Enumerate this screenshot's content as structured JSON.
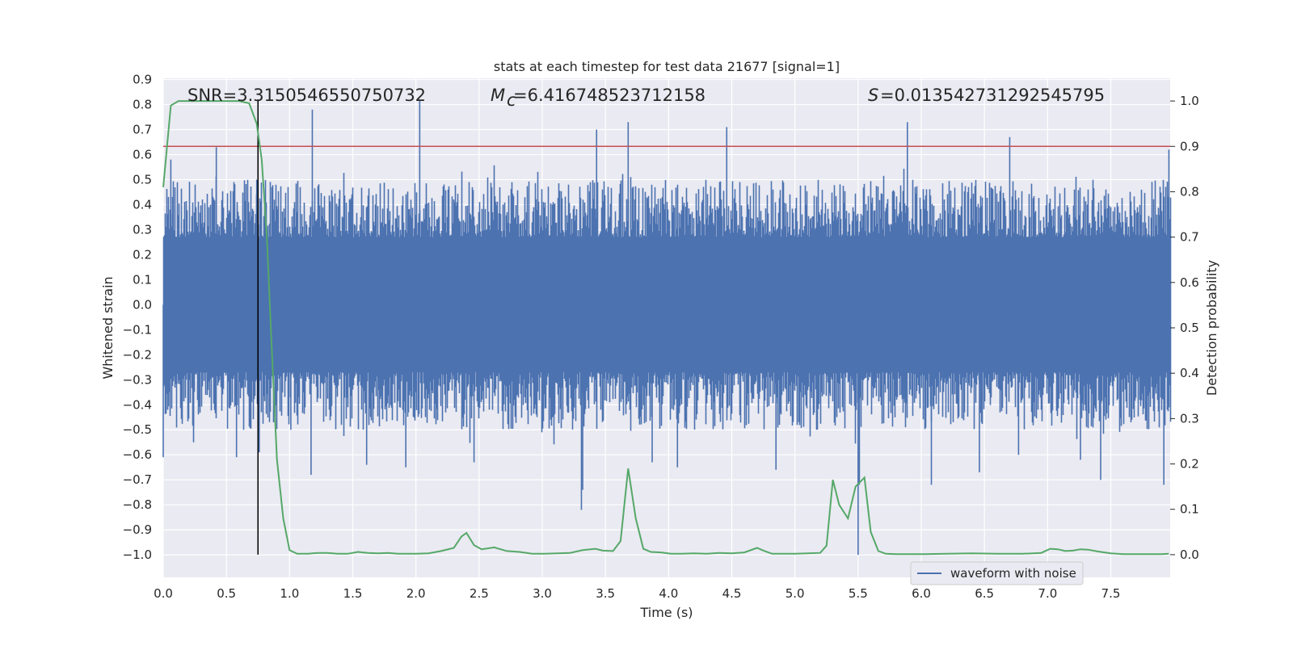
{
  "chart_data": {
    "type": "line",
    "title": "stats at each timestep for test data 21677 [signal=1]",
    "xlabel": "Time (s)",
    "ylabel_left": "Whitened strain",
    "ylabel_right": "Detection probability",
    "xlim": [
      0.0,
      7.97
    ],
    "ylim_left": [
      -1.09,
      0.905
    ],
    "ylim_right": [
      -0.05,
      1.05
    ],
    "x_ticks": [
      "0.0",
      "0.5",
      "1.0",
      "1.5",
      "2.0",
      "2.5",
      "3.0",
      "3.5",
      "4.0",
      "4.5",
      "5.0",
      "5.5",
      "6.0",
      "6.5",
      "7.0",
      "7.5"
    ],
    "y_ticks_left": [
      "−1.0",
      "−0.9",
      "−0.8",
      "−0.7",
      "−0.6",
      "−0.5",
      "−0.4",
      "−0.3",
      "−0.2",
      "−0.1",
      "0.0",
      "0.1",
      "0.2",
      "0.3",
      "0.4",
      "0.5",
      "0.6",
      "0.7",
      "0.8",
      "0.9"
    ],
    "y_ticks_right": [
      "0.0",
      "0.1",
      "0.2",
      "0.3",
      "0.4",
      "0.5",
      "0.6",
      "0.7",
      "0.8",
      "0.9",
      "1.0"
    ],
    "grid": true,
    "legend": {
      "entries": [
        "waveform with noise"
      ],
      "placement": "lower right"
    },
    "annotations": {
      "snr": "SNR=3.3150546550750732",
      "mc_value": "=6.416748523712158",
      "s_value": "=0.013542731292545795"
    },
    "colors": {
      "waveform": "#4c72b0",
      "probability": "#55a868",
      "threshold": "#c44e52",
      "marker": "#000000",
      "background": "#eaeaf2"
    },
    "series": [
      {
        "name": "waveform with noise",
        "axis": "left",
        "style": "dense noise band",
        "core_range": [
          -0.27,
          0.27
        ],
        "typical_peak_range": [
          -0.5,
          0.5
        ],
        "spikes": [
          [
            0.0,
            -0.61
          ],
          [
            0.06,
            0.58
          ],
          [
            0.24,
            -0.55
          ],
          [
            0.42,
            0.63
          ],
          [
            0.58,
            -0.61
          ],
          [
            0.74,
            0.5
          ],
          [
            0.76,
            -0.59
          ],
          [
            1.01,
            -0.5
          ],
          [
            1.18,
            0.78
          ],
          [
            1.17,
            -0.68
          ],
          [
            1.61,
            -0.64
          ],
          [
            1.92,
            -0.65
          ],
          [
            2.03,
            0.82
          ],
          [
            2.46,
            -0.63
          ],
          [
            3.31,
            -0.82
          ],
          [
            3.32,
            -0.74
          ],
          [
            3.43,
            0.7
          ],
          [
            3.68,
            0.73
          ],
          [
            3.87,
            -0.63
          ],
          [
            4.07,
            -0.65
          ],
          [
            4.46,
            0.71
          ],
          [
            4.85,
            -0.66
          ],
          [
            5.5,
            -1.0
          ],
          [
            5.51,
            -0.72
          ],
          [
            5.89,
            0.73
          ],
          [
            6.08,
            -0.72
          ],
          [
            6.46,
            -0.67
          ],
          [
            6.7,
            0.67
          ],
          [
            6.77,
            -0.6
          ],
          [
            7.26,
            -0.62
          ],
          [
            7.42,
            -0.7
          ],
          [
            7.92,
            -0.72
          ],
          [
            7.96,
            0.62
          ]
        ]
      },
      {
        "name": "",
        "axis": "right",
        "style": "line",
        "x": [
          0.0,
          0.06,
          0.12,
          0.2,
          0.3,
          0.4,
          0.5,
          0.6,
          0.68,
          0.74,
          0.78,
          0.82,
          0.86,
          0.9,
          0.95,
          1.0,
          1.06,
          1.14,
          1.22,
          1.3,
          1.38,
          1.46,
          1.54,
          1.62,
          1.7,
          1.78,
          1.86,
          1.94,
          2.0,
          2.1,
          2.2,
          2.3,
          2.36,
          2.4,
          2.46,
          2.52,
          2.62,
          2.72,
          2.82,
          2.92,
          3.02,
          3.12,
          3.22,
          3.32,
          3.42,
          3.48,
          3.56,
          3.62,
          3.68,
          3.74,
          3.8,
          3.86,
          3.94,
          4.02,
          4.1,
          4.2,
          4.3,
          4.4,
          4.5,
          4.6,
          4.7,
          4.76,
          4.82,
          4.9,
          5.0,
          5.1,
          5.2,
          5.25,
          5.3,
          5.35,
          5.42,
          5.48,
          5.55,
          5.6,
          5.66,
          5.72,
          5.8,
          5.9,
          6.0,
          6.2,
          6.4,
          6.6,
          6.8,
          6.95,
          7.02,
          7.08,
          7.14,
          7.2,
          7.26,
          7.32,
          7.4,
          7.5,
          7.6,
          7.7,
          7.8,
          7.9,
          7.96
        ],
        "y": [
          0.81,
          0.99,
          1.0,
          1.0,
          1.0,
          1.0,
          1.0,
          1.0,
          0.995,
          0.95,
          0.87,
          0.7,
          0.45,
          0.21,
          0.08,
          0.01,
          0.002,
          0.002,
          0.004,
          0.004,
          0.002,
          0.002,
          0.006,
          0.004,
          0.003,
          0.004,
          0.002,
          0.002,
          0.002,
          0.003,
          0.008,
          0.015,
          0.04,
          0.048,
          0.021,
          0.012,
          0.016,
          0.008,
          0.006,
          0.002,
          0.002,
          0.003,
          0.004,
          0.01,
          0.013,
          0.009,
          0.008,
          0.03,
          0.19,
          0.08,
          0.013,
          0.006,
          0.005,
          0.002,
          0.002,
          0.003,
          0.002,
          0.004,
          0.003,
          0.005,
          0.015,
          0.008,
          0.002,
          0.002,
          0.002,
          0.003,
          0.004,
          0.02,
          0.165,
          0.11,
          0.08,
          0.15,
          0.17,
          0.05,
          0.008,
          0.002,
          0.001,
          0.001,
          0.001,
          0.002,
          0.003,
          0.002,
          0.002,
          0.004,
          0.013,
          0.012,
          0.008,
          0.009,
          0.012,
          0.011,
          0.007,
          0.003,
          0.001,
          0.001,
          0.001,
          0.001,
          0.002
        ]
      }
    ],
    "threshold_right": 0.9,
    "marker_x": 0.75
  }
}
